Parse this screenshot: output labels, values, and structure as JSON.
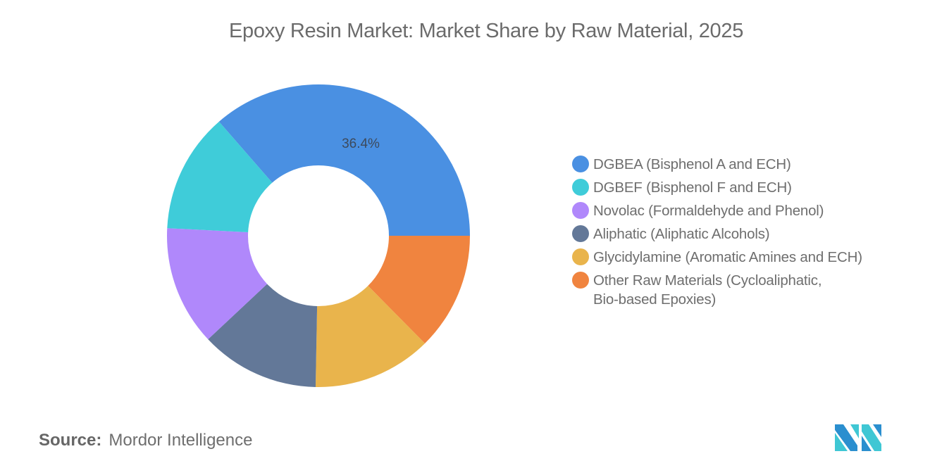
{
  "title": "Epoxy Resin Market: Market Share by Raw Material, 2025",
  "chart_data": {
    "type": "pie",
    "subtype": "donut",
    "title": "Epoxy Resin Market: Market Share by Raw Material, 2025",
    "categories": [
      "DGBEA (Bisphenol A and ECH)",
      "DGBEF (Bisphenol F and ECH)",
      "Novolac (Formaldehyde and Phenol)",
      "Aliphatic (Aliphatic Alcohols)",
      "Glycidylamine (Aromatic Amines and ECH)",
      "Other Raw Materials (Cycloaliphatic, Bio-based Epoxies)"
    ],
    "values": [
      36.4,
      12.8,
      12.8,
      12.7,
      12.7,
      12.6
    ],
    "colors": [
      "#4a90e2",
      "#3fccd9",
      "#b088fb",
      "#637898",
      "#e9b44c",
      "#f0843f"
    ],
    "data_labels": [
      {
        "category": "DGBEA (Bisphenol A and ECH)",
        "text": "36.4%"
      }
    ],
    "legend_position": "right",
    "unit": "%"
  },
  "segment_label": "36.4%",
  "legend": {
    "items": [
      {
        "lines": [
          "DGBEA (Bisphenol A and ECH)"
        ],
        "color": "#4a90e2"
      },
      {
        "lines": [
          "DGBEF (Bisphenol F and ECH)"
        ],
        "color": "#3fccd9"
      },
      {
        "lines": [
          "Novolac (Formaldehyde and Phenol)"
        ],
        "color": "#b088fb"
      },
      {
        "lines": [
          "Aliphatic (Aliphatic Alcohols)"
        ],
        "color": "#637898"
      },
      {
        "lines": [
          "Glycidylamine (Aromatic Amines and ECH)"
        ],
        "color": "#e9b44c"
      },
      {
        "lines": [
          "Other Raw Materials (Cycloaliphatic,",
          "Bio-based Epoxies)"
        ],
        "color": "#f0843f"
      }
    ]
  },
  "source": {
    "key": "Source:",
    "value": "Mordor Intelligence"
  },
  "logo": {
    "icon": "mordor-intelligence-logo-icon",
    "colors": [
      "#2b8fcf",
      "#3fc7d4"
    ]
  }
}
